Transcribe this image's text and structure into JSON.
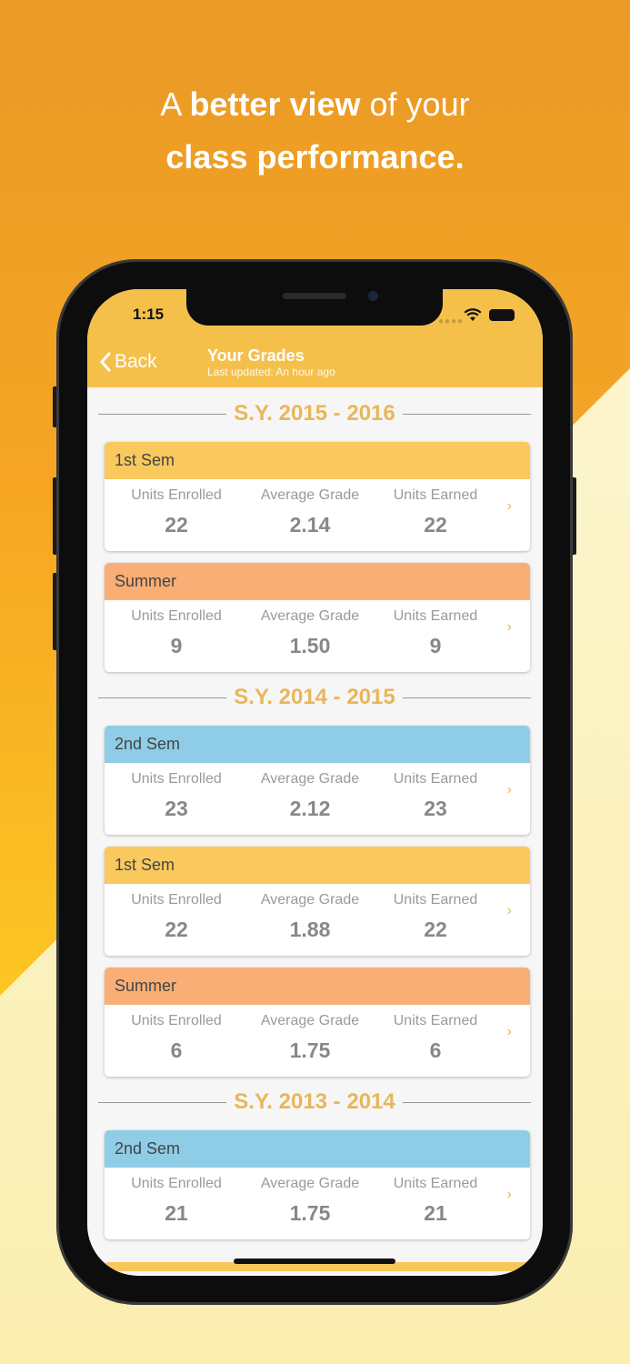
{
  "tagline": {
    "line1_pre": "A ",
    "line1_bold": "better view",
    "line1_post": " of your",
    "line2_bold": "class performance."
  },
  "status_bar": {
    "time": "1:15"
  },
  "nav": {
    "back_label": "Back",
    "title": "Your Grades",
    "subtitle": "Last updated: An hour ago"
  },
  "colors": {
    "header": "#f5c04a",
    "1st_sem": "#f9c95e",
    "summer": "#f8ae74",
    "2nd_sem": "#8fcde6",
    "year_text": "#e8b65a"
  },
  "column_labels": [
    "Units Enrolled",
    "Average Grade",
    "Units Earned"
  ],
  "years": [
    {
      "label": "S.Y. 2015 - 2016",
      "terms": [
        {
          "name": "1st Sem",
          "color": "#f9c95e",
          "units_enrolled": "22",
          "average_grade": "2.14",
          "units_earned": "22"
        },
        {
          "name": "Summer",
          "color": "#f8ae74",
          "units_enrolled": "9",
          "average_grade": "1.50",
          "units_earned": "9"
        }
      ]
    },
    {
      "label": "S.Y. 2014 - 2015",
      "terms": [
        {
          "name": "2nd Sem",
          "color": "#8fcde6",
          "units_enrolled": "23",
          "average_grade": "2.12",
          "units_earned": "23"
        },
        {
          "name": "1st Sem",
          "color": "#f9c95e",
          "units_enrolled": "22",
          "average_grade": "1.88",
          "units_earned": "22"
        },
        {
          "name": "Summer",
          "color": "#f8ae74",
          "units_enrolled": "6",
          "average_grade": "1.75",
          "units_earned": "6"
        }
      ]
    },
    {
      "label": "S.Y. 2013 - 2014",
      "terms": [
        {
          "name": "2nd Sem",
          "color": "#8fcde6",
          "units_enrolled": "21",
          "average_grade": "1.75",
          "units_earned": "21"
        }
      ]
    }
  ]
}
